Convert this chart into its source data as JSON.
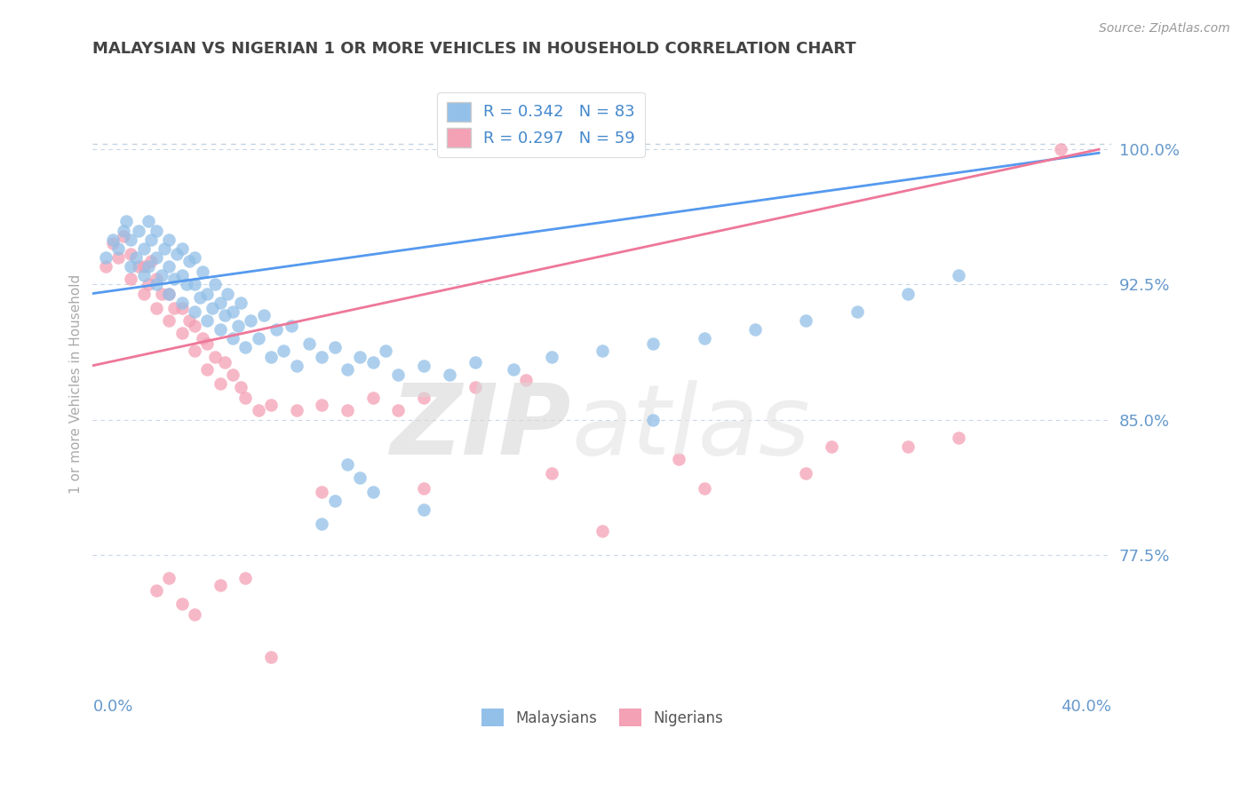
{
  "title": "MALAYSIAN VS NIGERIAN 1 OR MORE VEHICLES IN HOUSEHOLD CORRELATION CHART",
  "source_text": "Source: ZipAtlas.com",
  "ylabel_label": "1 or more Vehicles in Household",
  "ytick_values": [
    0.775,
    0.85,
    0.925,
    1.0
  ],
  "xlim": [
    0.0,
    0.4
  ],
  "ylim": [
    0.695,
    1.045
  ],
  "legend_blue_label": "R = 0.342   N = 83",
  "legend_pink_label": "R = 0.297   N = 59",
  "legend_label_malaysians": "Malaysians",
  "legend_label_nigerians": "Nigerians",
  "blue_color": "#92c0e8",
  "pink_color": "#f4a0b5",
  "axis_label_color": "#6699cc",
  "legend_text_color": "#4488cc",
  "blue_scatter_x": [
    0.005,
    0.008,
    0.01,
    0.012,
    0.013,
    0.015,
    0.015,
    0.017,
    0.018,
    0.02,
    0.02,
    0.022,
    0.022,
    0.023,
    0.025,
    0.025,
    0.025,
    0.027,
    0.028,
    0.03,
    0.03,
    0.03,
    0.032,
    0.033,
    0.035,
    0.035,
    0.035,
    0.037,
    0.038,
    0.04,
    0.04,
    0.04,
    0.042,
    0.043,
    0.045,
    0.045,
    0.047,
    0.048,
    0.05,
    0.05,
    0.052,
    0.053,
    0.055,
    0.055,
    0.057,
    0.058,
    0.06,
    0.062,
    0.065,
    0.067,
    0.07,
    0.072,
    0.075,
    0.078,
    0.08,
    0.085,
    0.09,
    0.095,
    0.1,
    0.105,
    0.11,
    0.115,
    0.12,
    0.13,
    0.14,
    0.15,
    0.165,
    0.18,
    0.2,
    0.22,
    0.24,
    0.26,
    0.28,
    0.3,
    0.32,
    0.34,
    0.1,
    0.11,
    0.13,
    0.22,
    0.09,
    0.095,
    0.105
  ],
  "blue_scatter_y": [
    0.94,
    0.95,
    0.945,
    0.955,
    0.96,
    0.935,
    0.95,
    0.94,
    0.955,
    0.93,
    0.945,
    0.935,
    0.96,
    0.95,
    0.925,
    0.94,
    0.955,
    0.93,
    0.945,
    0.92,
    0.935,
    0.95,
    0.928,
    0.942,
    0.915,
    0.93,
    0.945,
    0.925,
    0.938,
    0.91,
    0.925,
    0.94,
    0.918,
    0.932,
    0.905,
    0.92,
    0.912,
    0.925,
    0.9,
    0.915,
    0.908,
    0.92,
    0.895,
    0.91,
    0.902,
    0.915,
    0.89,
    0.905,
    0.895,
    0.908,
    0.885,
    0.9,
    0.888,
    0.902,
    0.88,
    0.892,
    0.885,
    0.89,
    0.878,
    0.885,
    0.882,
    0.888,
    0.875,
    0.88,
    0.875,
    0.882,
    0.878,
    0.885,
    0.888,
    0.892,
    0.895,
    0.9,
    0.905,
    0.91,
    0.92,
    0.93,
    0.825,
    0.81,
    0.8,
    0.85,
    0.792,
    0.805,
    0.818
  ],
  "pink_scatter_x": [
    0.005,
    0.008,
    0.01,
    0.012,
    0.015,
    0.015,
    0.018,
    0.02,
    0.02,
    0.022,
    0.023,
    0.025,
    0.025,
    0.027,
    0.03,
    0.03,
    0.032,
    0.035,
    0.035,
    0.038,
    0.04,
    0.04,
    0.043,
    0.045,
    0.045,
    0.048,
    0.05,
    0.052,
    0.055,
    0.058,
    0.06,
    0.065,
    0.07,
    0.08,
    0.09,
    0.1,
    0.11,
    0.12,
    0.13,
    0.15,
    0.17,
    0.2,
    0.24,
    0.28,
    0.32,
    0.38,
    0.025,
    0.03,
    0.035,
    0.04,
    0.05,
    0.06,
    0.09,
    0.13,
    0.18,
    0.23,
    0.29,
    0.34,
    0.07
  ],
  "pink_scatter_y": [
    0.935,
    0.948,
    0.94,
    0.952,
    0.928,
    0.942,
    0.935,
    0.92,
    0.935,
    0.925,
    0.938,
    0.912,
    0.928,
    0.92,
    0.905,
    0.92,
    0.912,
    0.898,
    0.912,
    0.905,
    0.888,
    0.902,
    0.895,
    0.878,
    0.892,
    0.885,
    0.87,
    0.882,
    0.875,
    0.868,
    0.862,
    0.855,
    0.858,
    0.855,
    0.858,
    0.855,
    0.862,
    0.855,
    0.862,
    0.868,
    0.872,
    0.788,
    0.812,
    0.82,
    0.835,
    1.0,
    0.755,
    0.762,
    0.748,
    0.742,
    0.758,
    0.762,
    0.81,
    0.812,
    0.82,
    0.828,
    0.835,
    0.84,
    0.718
  ],
  "dashed_line_y": 1.003,
  "trend_blue_x0": 0.0,
  "trend_blue_x1": 0.395,
  "trend_blue_y0": 0.92,
  "trend_blue_y1": 0.998,
  "trend_pink_x0": 0.0,
  "trend_pink_x1": 0.395,
  "trend_pink_y0": 0.88,
  "trend_pink_y1": 1.0
}
